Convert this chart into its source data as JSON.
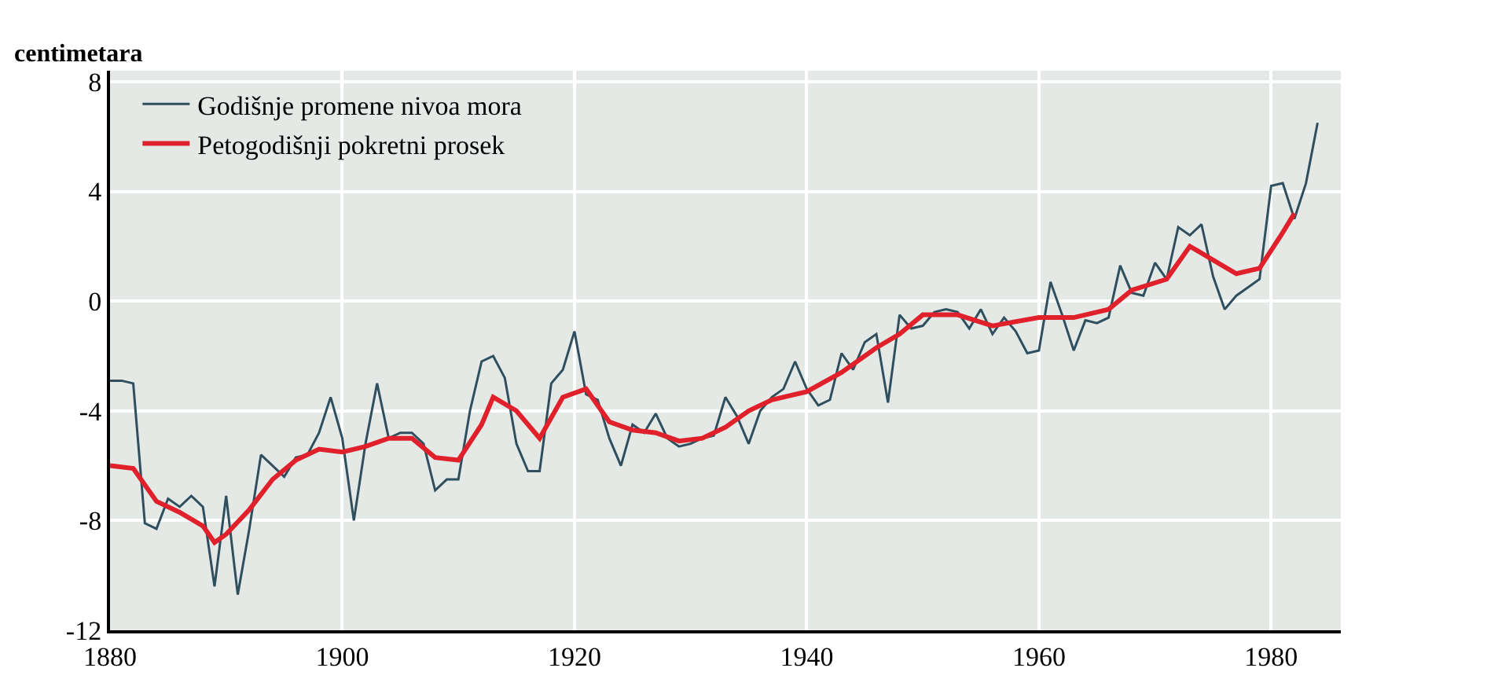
{
  "chart_data": {
    "type": "line",
    "ylabel": "centimetara",
    "xlim": [
      1880,
      1986
    ],
    "ylim": [
      -12,
      8.4
    ],
    "xticks": [
      1880,
      1900,
      1920,
      1940,
      1960,
      1980
    ],
    "yticks": [
      -12,
      -8,
      -4,
      0,
      4,
      8
    ],
    "grid": true,
    "legend": "top left",
    "marker": "none",
    "line_style": "solid",
    "series": [
      {
        "name": "Godišnje promene nivoa mora",
        "color": "#2f4f5f",
        "x": [
          1880,
          1881,
          1882,
          1883,
          1884,
          1885,
          1886,
          1887,
          1888,
          1889,
          1890,
          1891,
          1892,
          1893,
          1894,
          1895,
          1896,
          1897,
          1898,
          1899,
          1900,
          1901,
          1902,
          1903,
          1904,
          1905,
          1906,
          1907,
          1908,
          1909,
          1910,
          1911,
          1912,
          1913,
          1914,
          1915,
          1916,
          1917,
          1918,
          1919,
          1920,
          1921,
          1922,
          1923,
          1924,
          1925,
          1926,
          1927,
          1928,
          1929,
          1930,
          1931,
          1932,
          1933,
          1934,
          1935,
          1936,
          1937,
          1938,
          1939,
          1940,
          1941,
          1942,
          1943,
          1944,
          1945,
          1946,
          1947,
          1948,
          1949,
          1950,
          1951,
          1952,
          1953,
          1954,
          1955,
          1956,
          1957,
          1958,
          1959,
          1960,
          1961,
          1962,
          1963,
          1964,
          1965,
          1966,
          1967,
          1968,
          1969,
          1970,
          1971,
          1972,
          1973,
          1974,
          1975,
          1976,
          1977,
          1978,
          1979,
          1980,
          1981,
          1982,
          1983,
          1984
        ],
        "values": [
          -2.9,
          -2.9,
          -3,
          -8.1,
          -8.3,
          -7.2,
          -7.5,
          -7.1,
          -7.5,
          -10.4,
          -7.1,
          -10.7,
          -8.3,
          -5.6,
          -6,
          -6.4,
          -5.7,
          -5.6,
          -4.8,
          -3.5,
          -5,
          -8,
          -5.2,
          -3,
          -5,
          -4.8,
          -4.8,
          -5.2,
          -6.9,
          -6.5,
          -6.5,
          -4,
          -2.2,
          -2,
          -2.8,
          -5.2,
          -6.2,
          -6.2,
          -3,
          -2.5,
          -1.1,
          -3.4,
          -3.6,
          -5,
          -6,
          -4.5,
          -4.8,
          -4.1,
          -5,
          -5.3,
          -5.2,
          -5,
          -4.9,
          -3.5,
          -4.2,
          -5.2,
          -4,
          -3.5,
          -3.2,
          -2.2,
          -3.2,
          -3.8,
          -3.6,
          -1.9,
          -2.5,
          -1.5,
          -1.2,
          -3.7,
          -0.5,
          -1,
          -0.9,
          -0.4,
          -0.3,
          -0.4,
          -1,
          -0.3,
          -1.2,
          -0.6,
          -1.1,
          -1.9,
          -1.8,
          0.7,
          -0.5,
          -1.8,
          -0.7,
          -0.8,
          -0.6,
          1.3,
          0.3,
          0.2,
          1.4,
          0.8,
          2.7,
          2.4,
          2.8,
          0.9,
          -0.3,
          0.2,
          0.5,
          0.8,
          4.2,
          4.3,
          3,
          4.3,
          6.5
        ]
      },
      {
        "name": "Petogodišnji pokretni prosek",
        "color": "#e0202a",
        "x": [
          1880,
          1882,
          1884,
          1886,
          1888,
          1889,
          1890,
          1892,
          1894,
          1896,
          1898,
          1900,
          1902,
          1904,
          1906,
          1908,
          1910,
          1912,
          1913,
          1915,
          1917,
          1919,
          1921,
          1923,
          1925,
          1927,
          1929,
          1931,
          1933,
          1935,
          1937,
          1940,
          1943,
          1946,
          1948,
          1950,
          1953,
          1956,
          1960,
          1963,
          1966,
          1968,
          1971,
          1973,
          1975,
          1977,
          1979,
          1981,
          1982
        ],
        "values": [
          -6,
          -6.1,
          -7.3,
          -7.7,
          -8.2,
          -8.8,
          -8.5,
          -7.6,
          -6.5,
          -5.8,
          -5.4,
          -5.5,
          -5.3,
          -5,
          -5,
          -5.7,
          -5.8,
          -4.5,
          -3.5,
          -4,
          -5,
          -3.5,
          -3.2,
          -4.4,
          -4.7,
          -4.8,
          -5.1,
          -5,
          -4.6,
          -4,
          -3.6,
          -3.3,
          -2.6,
          -1.7,
          -1.2,
          -0.5,
          -0.5,
          -0.9,
          -0.6,
          -0.6,
          -0.3,
          0.4,
          0.8,
          2,
          1.5,
          1,
          1.2,
          2.5,
          3.2
        ]
      }
    ]
  }
}
